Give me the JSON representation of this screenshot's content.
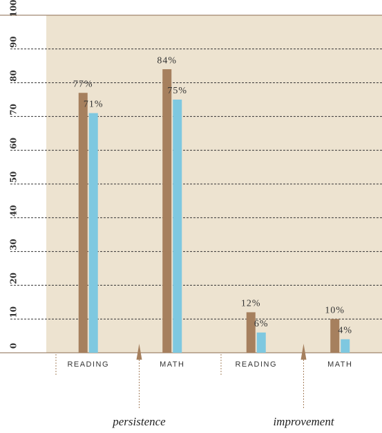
{
  "chart_data": {
    "type": "bar",
    "categories": [
      "READING",
      "MATH",
      "READING",
      "MATH"
    ],
    "group_labels": [
      "persistence",
      "improvement"
    ],
    "series": [
      {
        "color": "#a6805e",
        "values": [
          77,
          84,
          12,
          10
        ],
        "value_labels": [
          "77%",
          "84%",
          "12%",
          "10%"
        ]
      },
      {
        "color": "#7ec8e0",
        "values": [
          71,
          75,
          6,
          4
        ],
        "value_labels": [
          "71%",
          "75%",
          "6%",
          "4%"
        ]
      }
    ],
    "ylim": [
      0,
      100
    ],
    "yticks": [
      0,
      10,
      20,
      30,
      40,
      50,
      60,
      70,
      80,
      90,
      100
    ],
    "grid": true,
    "background": "#ede3d0"
  }
}
